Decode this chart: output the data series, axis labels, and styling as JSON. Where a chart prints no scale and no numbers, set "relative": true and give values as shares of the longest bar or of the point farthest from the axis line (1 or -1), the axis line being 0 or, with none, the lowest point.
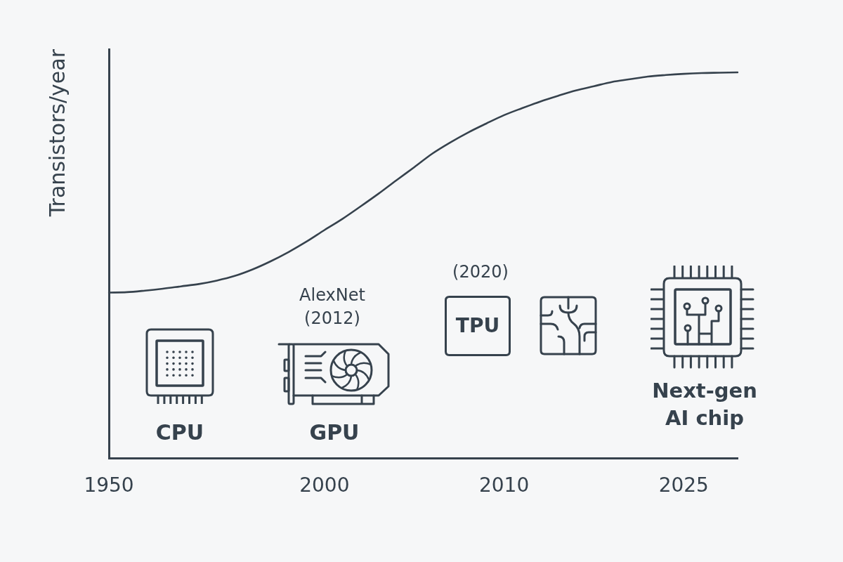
{
  "chart_data": {
    "type": "line",
    "ylabel": "Transistors/year",
    "relative": true,
    "marker": "none",
    "categories": [
      "1950",
      null,
      null,
      null,
      null,
      null,
      null,
      null,
      null,
      null,
      null,
      null,
      "2000",
      null,
      null,
      null,
      null,
      null,
      null,
      null,
      null,
      null,
      "2010",
      null,
      null,
      null,
      null,
      null,
      null,
      null,
      null,
      null,
      "2025",
      null,
      null,
      null
    ],
    "series": [
      {
        "color": "#36424d",
        "values": [
          0.429,
          0.43,
          0.434,
          0.439,
          0.445,
          0.451,
          0.46,
          0.472,
          0.489,
          0.51,
          0.534,
          0.561,
          0.591,
          0.62,
          0.652,
          0.685,
          0.72,
          0.754,
          0.789,
          0.818,
          0.844,
          0.867,
          0.889,
          0.907,
          0.924,
          0.939,
          0.953,
          0.964,
          0.975,
          0.982,
          0.989,
          0.993,
          0.996,
          0.998,
          0.999,
          1
        ]
      }
    ],
    "annotations": [
      "CPU",
      "AlexNet\n(2012)",
      "GPU",
      "(2020)",
      "TPU",
      "Next-gen\nAI chip"
    ]
  }
}
